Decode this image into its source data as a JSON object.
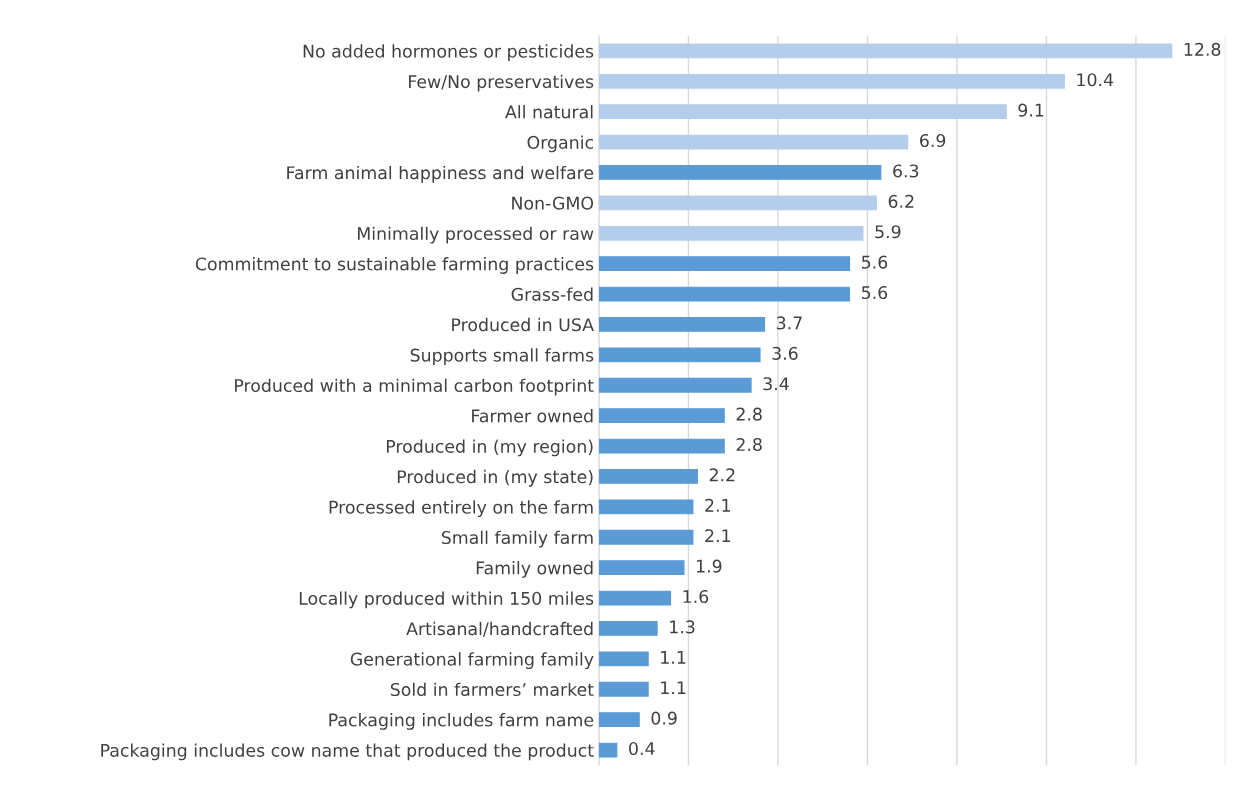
{
  "chart_data": {
    "type": "bar",
    "orientation": "horizontal",
    "categories": [
      "No added hormones or pesticides",
      "Few/No preservatives",
      "All natural",
      "Organic",
      "Farm animal happiness and welfare",
      "Non-GMO",
      "Minimally processed or raw",
      "Commitment to sustainable farming practices",
      "Grass-fed",
      "Produced in USA",
      "Supports small farms",
      "Produced with a minimal carbon footprint",
      "Farmer owned",
      "Produced in (my region)",
      "Produced in (my state)",
      "Processed entirely on the farm",
      "Small family farm",
      "Family owned",
      "Locally produced within 150 miles",
      "Artisanal/handcrafted",
      "Generational farming family",
      "Sold in farmers’ market",
      "Packaging includes farm name",
      "Packaging includes cow name that produced the product"
    ],
    "values": [
      12.8,
      10.4,
      9.1,
      6.9,
      6.3,
      6.2,
      5.9,
      5.6,
      5.6,
      3.7,
      3.6,
      3.4,
      2.8,
      2.8,
      2.2,
      2.1,
      2.1,
      1.9,
      1.6,
      1.3,
      1.1,
      1.1,
      0.9,
      0.4
    ],
    "colors": [
      "#b4cdea",
      "#b4cdea",
      "#b4cdea",
      "#b4cdea",
      "#5b9bd5",
      "#b4cdea",
      "#b4cdea",
      "#5b9bd5",
      "#5b9bd5",
      "#5b9bd5",
      "#5b9bd5",
      "#5b9bd5",
      "#5b9bd5",
      "#5b9bd5",
      "#5b9bd5",
      "#5b9bd5",
      "#5b9bd5",
      "#5b9bd5",
      "#5b9bd5",
      "#5b9bd5",
      "#5b9bd5",
      "#5b9bd5",
      "#5b9bd5",
      "#5b9bd5"
    ],
    "xlim": [
      0,
      14
    ],
    "xticks": [
      {
        "value": 0,
        "label": null
      },
      {
        "value": 2,
        "label": null
      },
      {
        "value": 4,
        "label": null
      },
      {
        "value": 6,
        "label": null
      },
      {
        "value": 8,
        "label": null
      },
      {
        "value": 10,
        "label": null
      },
      {
        "value": 12,
        "label": null
      },
      {
        "value": 14,
        "label": null
      }
    ],
    "grid": "x",
    "tick_labels": "y",
    "data_labels": true
  }
}
